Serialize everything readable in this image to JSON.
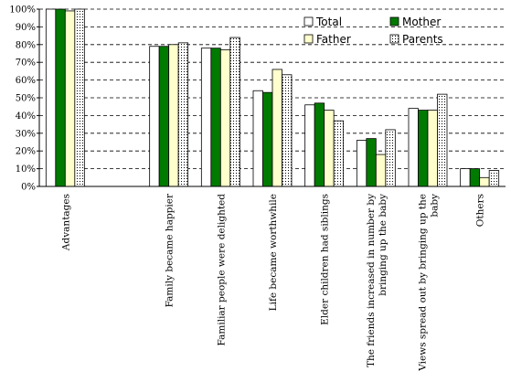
{
  "chart_data": {
    "type": "bar",
    "title": "",
    "xlabel": "",
    "ylabel": "",
    "ylim": [
      0,
      100
    ],
    "yticks": [
      "0%",
      "10%",
      "20%",
      "30%",
      "40%",
      "50%",
      "60%",
      "70%",
      "80%",
      "90%",
      "100%"
    ],
    "grid": "dashed-horizontal",
    "legend_position": "top-right",
    "categories": [
      [
        "Advantages"
      ],
      [
        ""
      ],
      [
        "Family became happier"
      ],
      [
        "Familiar people were delighted"
      ],
      [
        "Life became worthwhile"
      ],
      [
        "Elder children had siblings"
      ],
      [
        "The friends increased in number by",
        "bringing up the baby"
      ],
      [
        "Views spread out by bringing up the",
        "baby"
      ],
      [
        "Others"
      ]
    ],
    "series": [
      {
        "name": "Total",
        "pattern": "white",
        "values": [
          100,
          null,
          79,
          78,
          54,
          46,
          26,
          44,
          10
        ]
      },
      {
        "name": "Mother",
        "pattern": "green",
        "values": [
          100,
          null,
          79,
          78,
          53,
          47,
          27,
          43,
          10
        ]
      },
      {
        "name": "Father",
        "pattern": "yellow",
        "values": [
          99,
          null,
          80,
          77,
          66,
          43,
          18,
          43,
          5
        ]
      },
      {
        "name": "Parents",
        "pattern": "dotted",
        "values": [
          100,
          null,
          81,
          84,
          63,
          37,
          32,
          52,
          9
        ]
      }
    ],
    "colors": {
      "Total": "#ffffff",
      "Mother": "#007a00",
      "Father": "#ffffcc",
      "Parents": "#ffffff"
    }
  }
}
